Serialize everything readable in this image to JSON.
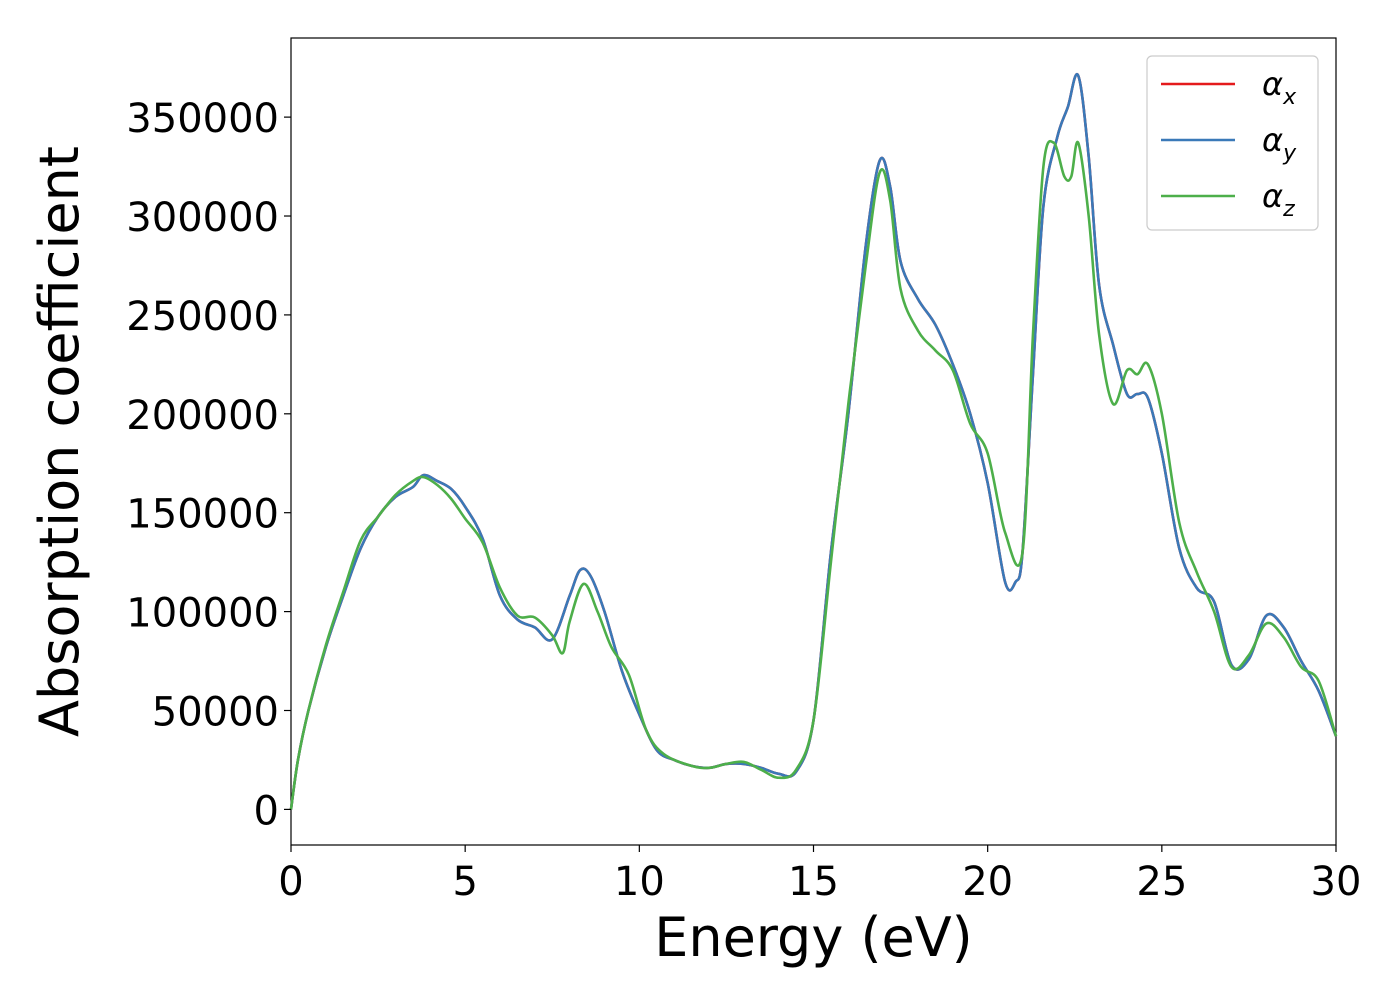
{
  "chart_data": {
    "type": "line",
    "xlabel": "Energy (eV)",
    "ylabel": "Absorption coefficient",
    "xlim": [
      0,
      30
    ],
    "ylim": [
      -18000,
      390000
    ],
    "xticks": [
      0,
      5,
      10,
      15,
      20,
      25,
      30
    ],
    "xtick_labels": [
      "0",
      "5",
      "10",
      "15",
      "20",
      "25",
      "30"
    ],
    "yticks": [
      0,
      50000,
      100000,
      150000,
      200000,
      250000,
      300000,
      350000
    ],
    "ytick_labels": [
      "0",
      "50000",
      "100000",
      "150000",
      "200000",
      "250000",
      "300000",
      "350000"
    ],
    "grid": false,
    "legend_position": "upper right",
    "series": [
      {
        "name": "α",
        "subscript": "x",
        "color": "#e41a1c",
        "x": [
          0,
          0.2,
          0.5,
          1.0,
          1.5,
          2.0,
          2.5,
          3.0,
          3.5,
          3.8,
          4.2,
          4.6,
          5.0,
          5.5,
          6.0,
          6.5,
          7.0,
          7.5,
          8.0,
          8.3,
          8.6,
          9.0,
          9.5,
          10.0,
          10.5,
          11.0,
          11.5,
          12.0,
          12.5,
          13.0,
          13.5,
          14.0,
          14.5,
          15.0,
          15.5,
          16.0,
          16.5,
          16.9,
          17.2,
          17.5,
          18.0,
          18.5,
          19.0,
          19.5,
          20.0,
          20.5,
          20.8,
          21.0,
          21.3,
          21.6,
          22.0,
          22.3,
          22.6,
          22.9,
          23.2,
          23.6,
          24.0,
          24.3,
          24.6,
          25.0,
          25.5,
          26.0,
          26.5,
          27.0,
          27.5,
          28.0,
          28.5,
          29.0,
          29.5,
          30.0
        ],
        "y": [
          0,
          25000,
          50000,
          82000,
          108000,
          132000,
          148000,
          158000,
          163000,
          169000,
          166000,
          162000,
          153000,
          137000,
          108000,
          96000,
          92000,
          86000,
          108000,
          121000,
          118000,
          100000,
          70000,
          48000,
          30000,
          25000,
          22000,
          21000,
          23000,
          23000,
          21000,
          18000,
          19000,
          45000,
          130000,
          200000,
          285000,
          328000,
          315000,
          277000,
          258000,
          245000,
          225000,
          200000,
          165000,
          115000,
          115000,
          130000,
          220000,
          305000,
          340000,
          355000,
          371000,
          330000,
          265000,
          235000,
          210000,
          210000,
          208000,
          180000,
          132000,
          112000,
          105000,
          73000,
          76000,
          98000,
          92000,
          75000,
          60000,
          37000
        ]
      },
      {
        "name": "α",
        "subscript": "y",
        "color": "#3a79b8",
        "x": [
          0,
          0.2,
          0.5,
          1.0,
          1.5,
          2.0,
          2.5,
          3.0,
          3.5,
          3.8,
          4.2,
          4.6,
          5.0,
          5.5,
          6.0,
          6.5,
          7.0,
          7.5,
          8.0,
          8.3,
          8.6,
          9.0,
          9.5,
          10.0,
          10.5,
          11.0,
          11.5,
          12.0,
          12.5,
          13.0,
          13.5,
          14.0,
          14.5,
          15.0,
          15.5,
          16.0,
          16.5,
          16.9,
          17.2,
          17.5,
          18.0,
          18.5,
          19.0,
          19.5,
          20.0,
          20.5,
          20.8,
          21.0,
          21.3,
          21.6,
          22.0,
          22.3,
          22.6,
          22.9,
          23.2,
          23.6,
          24.0,
          24.3,
          24.6,
          25.0,
          25.5,
          26.0,
          26.5,
          27.0,
          27.5,
          28.0,
          28.5,
          29.0,
          29.5,
          30.0
        ],
        "y": [
          0,
          25000,
          50000,
          82000,
          108000,
          132000,
          148000,
          158000,
          163000,
          169000,
          166000,
          162000,
          153000,
          137000,
          108000,
          96000,
          92000,
          86000,
          108000,
          121000,
          118000,
          100000,
          70000,
          48000,
          30000,
          25000,
          22000,
          21000,
          23000,
          23000,
          21000,
          18000,
          19000,
          45000,
          130000,
          200000,
          285000,
          328000,
          315000,
          277000,
          258000,
          245000,
          225000,
          200000,
          165000,
          115000,
          115000,
          130000,
          220000,
          305000,
          340000,
          355000,
          371000,
          330000,
          265000,
          235000,
          210000,
          210000,
          208000,
          180000,
          132000,
          112000,
          105000,
          73000,
          76000,
          98000,
          92000,
          75000,
          60000,
          37000
        ]
      },
      {
        "name": "α",
        "subscript": "z",
        "color": "#4daf4a",
        "x": [
          0,
          0.2,
          0.5,
          1.0,
          1.5,
          2.0,
          2.5,
          3.0,
          3.5,
          3.8,
          4.2,
          4.6,
          5.0,
          5.5,
          6.0,
          6.5,
          7.0,
          7.5,
          7.8,
          8.0,
          8.4,
          8.8,
          9.2,
          9.7,
          10.2,
          10.7,
          11.5,
          12.0,
          12.5,
          13.0,
          13.5,
          14.0,
          14.5,
          15.0,
          15.5,
          16.0,
          16.5,
          16.9,
          17.2,
          17.5,
          18.0,
          18.5,
          19.0,
          19.5,
          20.0,
          20.5,
          21.0,
          21.3,
          21.6,
          21.9,
          22.2,
          22.4,
          22.6,
          22.9,
          23.2,
          23.6,
          24.0,
          24.3,
          24.6,
          25.0,
          25.5,
          26.0,
          26.5,
          27.0,
          27.5,
          28.0,
          28.5,
          29.0,
          29.5,
          30.0
        ],
        "y": [
          0,
          25000,
          50000,
          83000,
          110000,
          136000,
          148000,
          159000,
          166000,
          168000,
          164000,
          157000,
          147000,
          135000,
          112000,
          98000,
          97000,
          88000,
          79000,
          95000,
          114000,
          100000,
          82000,
          68000,
          40000,
          28000,
          22000,
          21000,
          23000,
          24000,
          20000,
          16000,
          20000,
          45000,
          125000,
          205000,
          275000,
          322000,
          308000,
          263000,
          242000,
          232000,
          222000,
          195000,
          180000,
          140000,
          130000,
          240000,
          325000,
          337000,
          320000,
          320000,
          337000,
          300000,
          240000,
          205000,
          222000,
          220000,
          225000,
          200000,
          145000,
          120000,
          100000,
          72000,
          78000,
          94000,
          87000,
          72000,
          65000,
          37000
        ]
      }
    ]
  }
}
